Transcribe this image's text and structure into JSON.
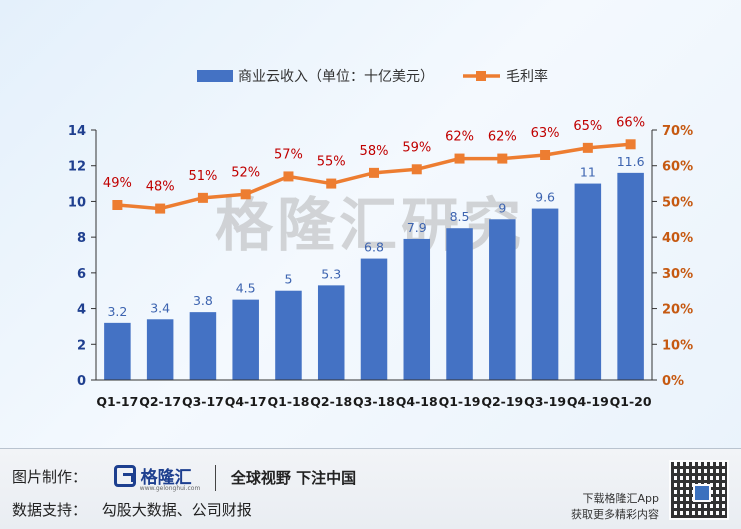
{
  "chart_data": {
    "type": "bar+line",
    "categories": [
      "Q1-17",
      "Q2-17",
      "Q3-17",
      "Q4-17",
      "Q1-18",
      "Q2-18",
      "Q3-18",
      "Q4-18",
      "Q1-19",
      "Q2-19",
      "Q3-19",
      "Q4-19",
      "Q1-20"
    ],
    "series": [
      {
        "name": "商业云收入（单位：十亿美元）",
        "type": "bar",
        "axis": "left",
        "values": [
          3.2,
          3.4,
          3.8,
          4.5,
          5,
          5.3,
          6.8,
          7.9,
          8.5,
          9,
          9.6,
          11,
          11.6
        ],
        "labels": [
          "3.2",
          "3.4",
          "3.8",
          "4.5",
          "5",
          "5.3",
          "6.8",
          "7.9",
          "8.5",
          "9",
          "9.6",
          "11",
          "11.6"
        ]
      },
      {
        "name": "毛利率",
        "type": "line",
        "axis": "right",
        "values": [
          49,
          48,
          51,
          52,
          57,
          55,
          58,
          59,
          62,
          62,
          63,
          65,
          66
        ],
        "labels": [
          "49%",
          "48%",
          "51%",
          "52%",
          "57%",
          "55%",
          "58%",
          "59%",
          "62%",
          "62%",
          "63%",
          "65%",
          "66%"
        ]
      }
    ],
    "y_left": {
      "range": [
        0,
        14
      ],
      "ticks": [
        "0",
        "2",
        "4",
        "6",
        "8",
        "10",
        "12",
        "14"
      ]
    },
    "y_right": {
      "range": [
        0,
        70
      ],
      "ticks": [
        "0%",
        "10%",
        "20%",
        "30%",
        "40%",
        "50%",
        "60%",
        "70%"
      ]
    },
    "legend_position": "top",
    "watermark": "格隆汇研究",
    "colors": {
      "bar": "#4472c4",
      "line": "#ed7d31",
      "line_label": "#c00000",
      "axis_left": "#1f3f8f",
      "axis_right": "#c65911",
      "bar_label": "#3d64b0"
    }
  },
  "footer": {
    "made_by_label": "图片制作：",
    "brand": "格隆汇",
    "brand_url": "www.gelonghui.com",
    "slogan": "全球视野 下注中国",
    "data_label": "数据支持：",
    "data_sources": "勾股大数据、公司财报",
    "app_line1": "下载格隆汇App",
    "app_line2": "获取更多精彩内容"
  }
}
